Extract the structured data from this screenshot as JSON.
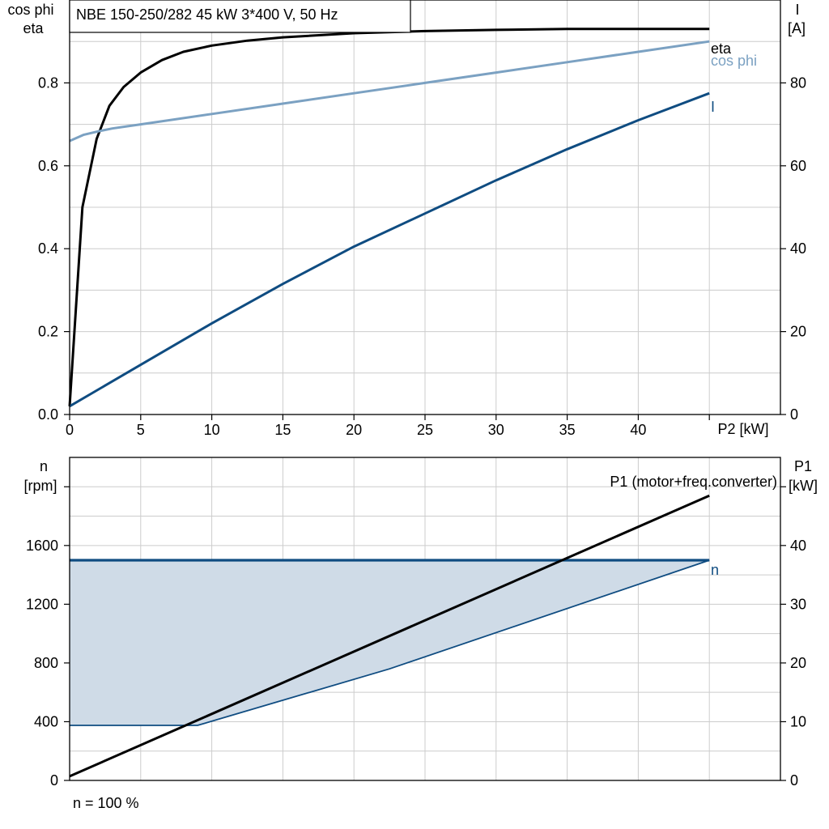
{
  "title": "NBE 150-250/282   45 kW   3*400 V, 50 Hz",
  "footer": "n = 100 %",
  "colors": {
    "eta": "#000000",
    "cos_phi": "#7ba1c2",
    "current": "#0f4c81",
    "speed_fill": "#cfdbe7",
    "p1": "#000000",
    "grid": "#cccccc"
  },
  "chart_data": [
    {
      "type": "line",
      "axes": {
        "x_label": "P2 [kW]",
        "x_ticks": [
          "0",
          "5",
          "10",
          "15",
          "20",
          "25",
          "30",
          "35",
          "40"
        ],
        "x_range": [
          0,
          50
        ],
        "y_left_label_line1": "cos phi",
        "y_left_label_line2": "eta",
        "y_left_ticks": [
          "0.0",
          "0.2",
          "0.4",
          "0.6",
          "0.8"
        ],
        "y_left_range": [
          0,
          1.0
        ],
        "y_right_label_line1": "I",
        "y_right_label_line2": "[A]",
        "y_right_ticks": [
          "0",
          "20",
          "40",
          "60",
          "80"
        ],
        "y_right_range": [
          0,
          100
        ]
      },
      "grid": true,
      "series": [
        {
          "name": "eta",
          "axis": "left",
          "x": [
            0,
            0.9,
            1.9,
            2.8,
            3.8,
            5,
            6.5,
            8,
            10,
            12.5,
            15,
            20,
            25,
            30,
            35,
            40,
            45
          ],
          "y": [
            0.02,
            0.5,
            0.665,
            0.745,
            0.79,
            0.825,
            0.855,
            0.875,
            0.89,
            0.902,
            0.91,
            0.92,
            0.925,
            0.928,
            0.93,
            0.93,
            0.93
          ]
        },
        {
          "name": "cos phi",
          "axis": "left",
          "x": [
            0,
            1,
            2,
            3,
            5,
            10,
            15,
            20,
            25,
            30,
            35,
            40,
            45
          ],
          "y": [
            0.66,
            0.675,
            0.683,
            0.69,
            0.7,
            0.725,
            0.75,
            0.775,
            0.8,
            0.825,
            0.85,
            0.875,
            0.9
          ]
        },
        {
          "name": "I",
          "axis": "right",
          "x": [
            0,
            5,
            10,
            15,
            20,
            25,
            30,
            35,
            40,
            45
          ],
          "y": [
            2,
            12,
            22,
            31.5,
            40.5,
            48.5,
            56.5,
            64,
            71,
            77.5
          ]
        }
      ]
    },
    {
      "type": "line",
      "axes": {
        "x_range": [
          0,
          50
        ],
        "y_left_label_line1": "n",
        "y_left_label_line2": "[rpm]",
        "y_left_ticks": [
          "0",
          "400",
          "800",
          "1200",
          "1600"
        ],
        "y_left_range": [
          0,
          2200
        ],
        "y_right_label_line1": "P1",
        "y_right_label_line2": "[kW]",
        "y_right_ticks": [
          "0",
          "10",
          "20",
          "30",
          "40"
        ],
        "y_right_range": [
          0,
          55
        ]
      },
      "grid": true,
      "series": [
        {
          "name": "n",
          "axis": "left",
          "x": [
            0,
            45
          ],
          "y": [
            1500,
            1500
          ],
          "lower_x": [
            0,
            9,
            22.5,
            45
          ],
          "lower_y": [
            375,
            375,
            760,
            1500
          ]
        },
        {
          "name": "P1 (motor+freq.converter)",
          "axis": "right",
          "x": [
            0,
            45
          ],
          "y": [
            0.7,
            48.5
          ]
        }
      ]
    }
  ]
}
